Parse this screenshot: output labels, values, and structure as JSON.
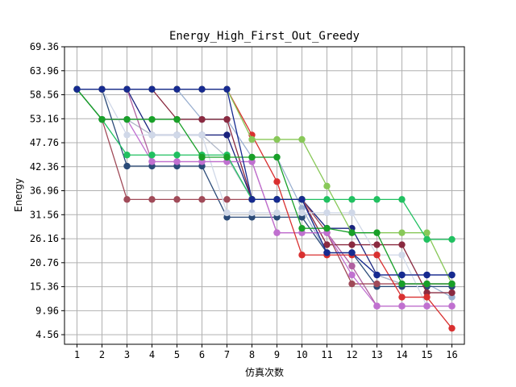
{
  "chart_data": {
    "type": "line",
    "title": "Energy_High_First_Out_Greedy",
    "xlabel": "仿真次数",
    "ylabel": "Energy",
    "x": [
      1,
      2,
      3,
      4,
      5,
      6,
      7,
      8,
      9,
      10,
      11,
      12,
      13,
      14,
      15,
      16
    ],
    "xlim": [
      0.5,
      16.5
    ],
    "ylim": [
      2.4,
      69.36
    ],
    "yticks": [
      "4.56",
      "9.96",
      "15.36",
      "20.76",
      "26.16",
      "31.56",
      "36.96",
      "42.36",
      "47.76",
      "53.16",
      "58.56",
      "63.96",
      "69.36"
    ],
    "xticks": [
      "1",
      "2",
      "3",
      "4",
      "5",
      "6",
      "7",
      "8",
      "9",
      "10",
      "11",
      "12",
      "13",
      "14",
      "15",
      "16"
    ],
    "grid": true,
    "marker": "circle",
    "series": [
      {
        "color": "#9ab0d0",
        "values": [
          59.8,
          59.8,
          59.8,
          59.8,
          59.8,
          53.0,
          53.0,
          44.5,
          44.5,
          33.0,
          23.0,
          23.0,
          18.0,
          16.0,
          16.0,
          13.0
        ]
      },
      {
        "color": "#1a237e",
        "values": [
          59.8,
          59.8,
          59.8,
          49.5,
          49.5,
          49.5,
          49.5,
          35.0,
          35.0,
          35.0,
          28.5,
          28.5,
          18.0,
          18.0,
          18.0,
          18.0
        ]
      },
      {
        "color": "#b0b8c8",
        "values": [
          59.8,
          53.0,
          53.0,
          49.5,
          49.5,
          49.5,
          44.5,
          35.0,
          35.0,
          35.0,
          23.0,
          23.0,
          18.0,
          16.0,
          16.0,
          16.0
        ]
      },
      {
        "color": "#b060a0",
        "values": [
          59.8,
          59.8,
          59.8,
          43.5,
          43.5,
          43.5,
          43.5,
          43.5,
          27.5,
          27.5,
          27.5,
          20.0,
          11.0,
          11.0,
          11.0,
          11.0
        ]
      },
      {
        "color": "#2a4a78",
        "values": [
          59.8,
          59.8,
          42.5,
          42.5,
          42.5,
          42.5,
          31.0,
          31.0,
          31.0,
          31.0,
          23.0,
          23.0,
          15.4,
          15.4,
          15.4,
          15.4
        ]
      },
      {
        "color": "#8a2a40",
        "values": [
          59.8,
          59.8,
          59.8,
          59.8,
          53.0,
          53.0,
          53.0,
          35.0,
          35.0,
          35.0,
          24.8,
          24.8,
          24.8,
          24.8,
          14.0,
          14.0
        ]
      },
      {
        "color": "#a04a58",
        "values": [
          59.8,
          53.0,
          35.0,
          35.0,
          35.0,
          35.0,
          35.0,
          35.0,
          35.0,
          35.0,
          27.5,
          16.0,
          16.0,
          16.0,
          16.0,
          16.0
        ]
      },
      {
        "color": "#d0d8e8",
        "values": [
          59.8,
          59.8,
          49.5,
          49.5,
          49.5,
          49.5,
          32.0,
          32.0,
          32.0,
          32.0,
          32.0,
          32.0,
          22.5,
          22.5,
          11.0,
          11.0
        ]
      },
      {
        "color": "#c070d0",
        "values": [
          59.8,
          53.0,
          53.0,
          43.5,
          43.5,
          43.5,
          43.5,
          43.5,
          27.5,
          27.5,
          27.5,
          18.0,
          11.0,
          11.0,
          11.0,
          11.0
        ]
      },
      {
        "color": "#d93030",
        "values": [
          59.8,
          59.8,
          59.8,
          59.8,
          59.8,
          59.8,
          59.8,
          49.5,
          39.0,
          22.5,
          22.5,
          22.5,
          22.5,
          13.0,
          13.0,
          6.0
        ]
      },
      {
        "color": "#88c858",
        "values": [
          59.8,
          59.8,
          59.8,
          59.8,
          59.8,
          59.8,
          59.8,
          48.5,
          48.5,
          48.5,
          38.0,
          27.5,
          27.5,
          27.5,
          27.5,
          16.0
        ]
      },
      {
        "color": "#20c060",
        "values": [
          59.8,
          53.0,
          45.0,
          45.0,
          45.0,
          45.0,
          45.0,
          35.0,
          35.0,
          35.0,
          35.0,
          35.0,
          35.0,
          35.0,
          26.0,
          26.0
        ]
      },
      {
        "color": "#18a028",
        "values": [
          59.8,
          53.0,
          53.0,
          53.0,
          53.0,
          44.5,
          44.5,
          44.5,
          44.5,
          28.5,
          28.5,
          27.5,
          27.5,
          16.0,
          16.0,
          16.0
        ]
      },
      {
        "color": "#162a90",
        "values": [
          59.8,
          59.8,
          59.8,
          59.8,
          59.8,
          59.8,
          59.8,
          35.0,
          35.0,
          35.0,
          23.0,
          23.0,
          18.0,
          18.0,
          18.0,
          18.0
        ]
      }
    ]
  }
}
